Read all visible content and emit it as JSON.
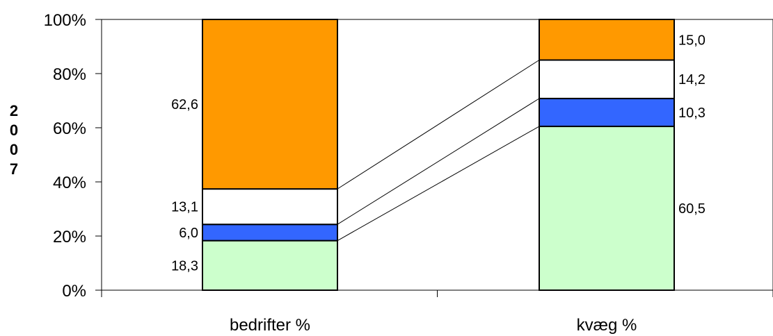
{
  "chart_data": {
    "type": "bar",
    "stacked": "percent",
    "categories": [
      "bedrifter %",
      "kvæg %"
    ],
    "series": [
      {
        "values": [
          18.3,
          60.5
        ],
        "color": "#ccffcc"
      },
      {
        "values": [
          6.0,
          10.3
        ],
        "color": "#3366ff"
      },
      {
        "values": [
          13.1,
          14.2
        ],
        "color": "#ffffff"
      },
      {
        "values": [
          62.6,
          15.0
        ],
        "color": "#ff9900"
      }
    ],
    "value_labels": [
      [
        "18,3",
        "60,5"
      ],
      [
        "6,0",
        "10,3"
      ],
      [
        "13,1",
        "14,2"
      ],
      [
        "62,6",
        "15,0"
      ]
    ],
    "y_ticks": [
      "0%",
      "20%",
      "40%",
      "60%",
      "80%",
      "100%"
    ],
    "ylim": [
      0,
      100
    ],
    "ylabel": "2007",
    "series_lines": true,
    "grid": false,
    "legend": "none"
  }
}
